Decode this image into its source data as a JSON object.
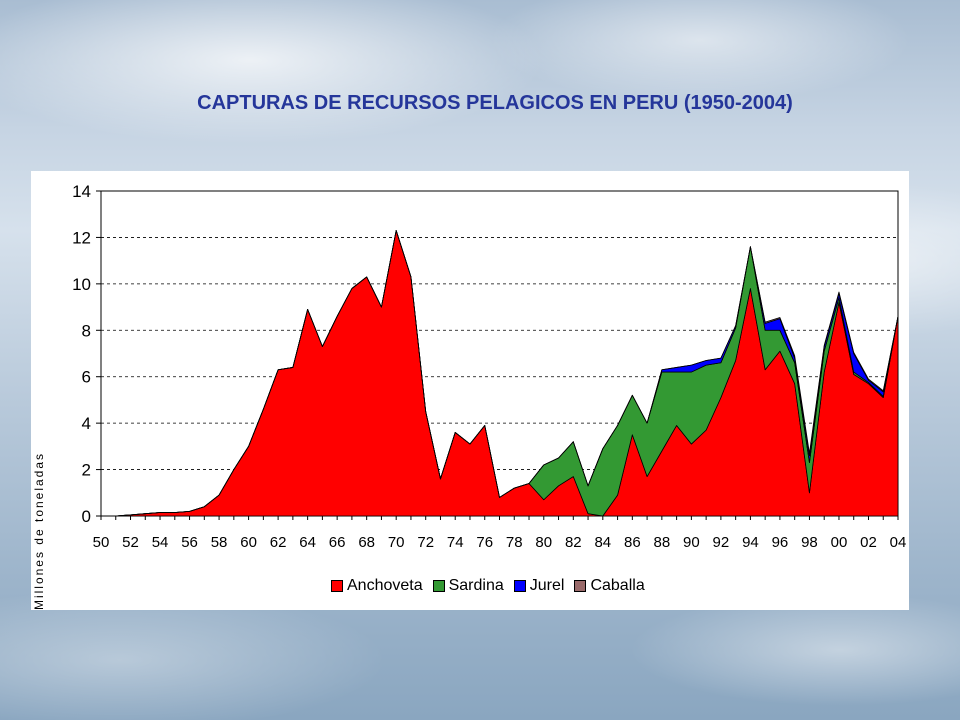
{
  "title": "CAPTURAS DE RECURSOS PELAGICOS EN PERU (1950-2004)",
  "chart_data": {
    "type": "area",
    "stacked": true,
    "ylabel": "Millones de toneladas",
    "xlabel": "",
    "ylim": [
      0,
      14
    ],
    "yticks": [
      "0",
      "2",
      "4",
      "6",
      "8",
      "10",
      "12",
      "14"
    ],
    "grid": true,
    "legend": "bottom",
    "x": [
      1950,
      1951,
      1952,
      1953,
      1954,
      1955,
      1956,
      1957,
      1958,
      1959,
      1960,
      1961,
      1962,
      1963,
      1964,
      1965,
      1966,
      1967,
      1968,
      1969,
      1970,
      1971,
      1972,
      1973,
      1974,
      1975,
      1976,
      1977,
      1978,
      1979,
      1980,
      1981,
      1982,
      1983,
      1984,
      1985,
      1986,
      1987,
      1988,
      1989,
      1990,
      1991,
      1992,
      1993,
      1994,
      1995,
      1996,
      1997,
      1998,
      1999,
      2000,
      2001,
      2002,
      2003,
      2004
    ],
    "xtick_labels": [
      "50",
      "52",
      "54",
      "56",
      "58",
      "60",
      "62",
      "64",
      "66",
      "68",
      "70",
      "72",
      "74",
      "76",
      "78",
      "80",
      "82",
      "84",
      "86",
      "88",
      "90",
      "92",
      "94",
      "96",
      "98",
      "00",
      "02",
      "04"
    ],
    "series": [
      {
        "name": "Anchoveta",
        "color": "#ff0000",
        "values": [
          0,
          0,
          0.05,
          0.1,
          0.15,
          0.15,
          0.2,
          0.4,
          0.9,
          2,
          3,
          4.6,
          6.3,
          6.4,
          8.9,
          7.3,
          8.6,
          9.8,
          10.3,
          9,
          12.3,
          10.3,
          4.5,
          1.6,
          3.6,
          3.1,
          3.9,
          0.8,
          1.2,
          1.4,
          0.7,
          1.3,
          1.7,
          0.1,
          0,
          0.9,
          3.5,
          1.7,
          2.8,
          3.9,
          3.1,
          3.7,
          5.1,
          6.7,
          9.8,
          6.3,
          7.1,
          5.7,
          1,
          6.2,
          9.2,
          6.1,
          5.7,
          5.1,
          8.6
        ]
      },
      {
        "name": "Sardina",
        "color": "#339933",
        "values": [
          0,
          0,
          0,
          0,
          0,
          0,
          0,
          0,
          0,
          0,
          0,
          0,
          0,
          0,
          0,
          0,
          0,
          0,
          0,
          0,
          0,
          0,
          0,
          0,
          0,
          0,
          0,
          0,
          0,
          0,
          1.5,
          1.2,
          1.5,
          1.2,
          2.9,
          3,
          1.7,
          2.3,
          3.4,
          2.3,
          3.1,
          2.8,
          1.5,
          1.4,
          1.8,
          1.7,
          0.9,
          0.9,
          1.3,
          0.9,
          0.2,
          0.1,
          0.05,
          0.05,
          0
        ]
      },
      {
        "name": "Jurel",
        "color": "#0000ff",
        "values": [
          0,
          0,
          0,
          0,
          0,
          0,
          0,
          0,
          0,
          0,
          0,
          0,
          0,
          0,
          0,
          0,
          0,
          0,
          0,
          0,
          0,
          0,
          0,
          0,
          0,
          0,
          0,
          0,
          0,
          0,
          0,
          0,
          0,
          0,
          0,
          0,
          0,
          0,
          0.1,
          0.2,
          0.3,
          0.2,
          0.2,
          0.1,
          0,
          0.3,
          0.5,
          0.2,
          0.3,
          0.2,
          0.2,
          0.8,
          0.1,
          0.2,
          0
        ]
      },
      {
        "name": "Caballa",
        "color": "#9a6a6a",
        "values": [
          0,
          0,
          0,
          0,
          0,
          0,
          0,
          0,
          0,
          0,
          0,
          0,
          0,
          0,
          0,
          0,
          0,
          0,
          0,
          0,
          0,
          0,
          0,
          0,
          0,
          0,
          0,
          0,
          0,
          0,
          0,
          0,
          0,
          0,
          0,
          0,
          0,
          0,
          0,
          0,
          0,
          0,
          0,
          0,
          0,
          0.05,
          0.05,
          0.1,
          0.1,
          0.05,
          0.05,
          0.05,
          0.05,
          0.05,
          0
        ]
      }
    ]
  }
}
